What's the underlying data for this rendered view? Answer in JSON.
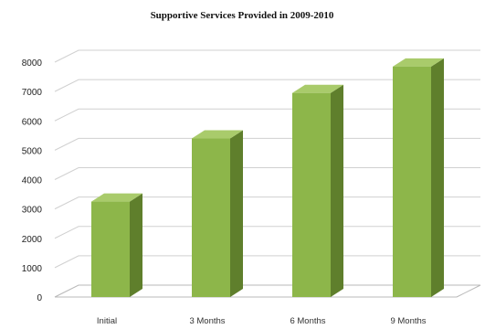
{
  "chart_data": {
    "type": "bar",
    "title": "Supportive Services Provided in 2009-2010",
    "categories": [
      "Initial",
      "3 Months",
      "6 Months",
      "9 Months"
    ],
    "values": [
      3250,
      5400,
      6950,
      7850
    ],
    "ylim": [
      0,
      8000
    ],
    "yticks": [
      0,
      1000,
      2000,
      3000,
      4000,
      5000,
      6000,
      7000,
      8000
    ],
    "xlabel": "",
    "ylabel": "",
    "grid": true,
    "legend": "none",
    "colors": {
      "bar_front": "#8db64a",
      "bar_side": "#5f7f2c",
      "bar_top": "#a9cb6b",
      "grid": "#d0d0d0",
      "axis": "#b8b8b8"
    }
  }
}
